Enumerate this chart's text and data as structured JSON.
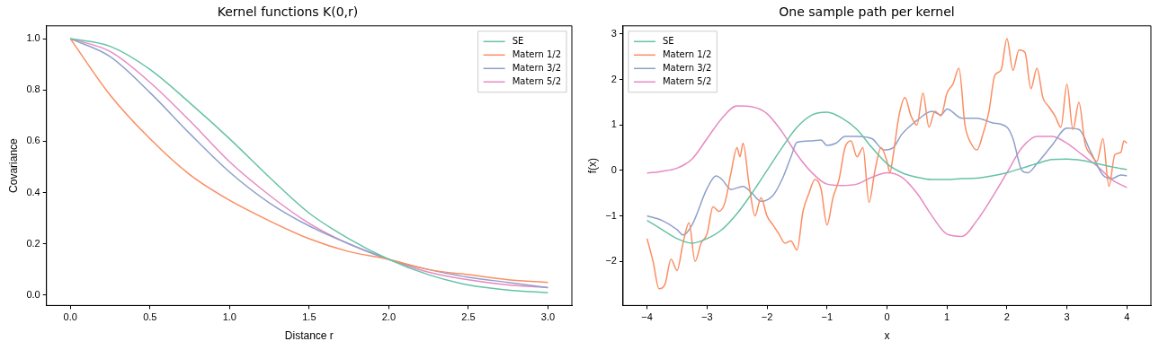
{
  "chart_data": [
    {
      "type": "line",
      "title": "Kernel functions K(0,r)",
      "xlabel": "Distance r",
      "ylabel": "Covariance",
      "x": [
        0,
        0.25,
        0.5,
        0.75,
        1,
        1.25,
        1.5,
        1.75,
        2,
        2.25,
        2.5,
        2.75,
        3
      ],
      "xlim": [
        -0.15,
        3.15
      ],
      "xticks": [
        {
          "value": 0,
          "label": "0.0"
        },
        {
          "value": 0.5,
          "label": "0.5"
        },
        {
          "value": 1,
          "label": "1.0"
        },
        {
          "value": 1.5,
          "label": "1.5"
        },
        {
          "value": 2,
          "label": "2.0"
        },
        {
          "value": 2.5,
          "label": "2.5"
        },
        {
          "value": 3,
          "label": "3.0"
        }
      ],
      "ylim": [
        -0.04,
        1.05
      ],
      "yticks": [
        {
          "value": 0,
          "label": "0.0"
        },
        {
          "value": 0.2,
          "label": "0.2"
        },
        {
          "value": 0.4,
          "label": "0.4"
        },
        {
          "value": 0.6,
          "label": "0.6"
        },
        {
          "value": 0.8,
          "label": "0.8"
        },
        {
          "value": 1,
          "label": "1.0"
        }
      ],
      "grid": false,
      "legend": "top right",
      "marker": "none",
      "line_style": "solid",
      "series": [
        {
          "name": "SE",
          "color": "#66c2a5",
          "values": [
            1,
            0.97,
            0.88,
            0.75,
            0.61,
            0.46,
            0.32,
            0.22,
            0.14,
            0.08,
            0.04,
            0.02,
            0.01
          ]
        },
        {
          "name": "Matern 1/2",
          "color": "#fc8d62",
          "values": [
            1,
            0.78,
            0.61,
            0.47,
            0.37,
            0.29,
            0.22,
            0.17,
            0.14,
            0.1,
            0.08,
            0.06,
            0.05
          ]
        },
        {
          "name": "Matern 3/2",
          "color": "#8da0cb",
          "values": [
            1,
            0.93,
            0.79,
            0.63,
            0.48,
            0.36,
            0.27,
            0.2,
            0.14,
            0.1,
            0.07,
            0.05,
            0.03
          ]
        },
        {
          "name": "Matern 5/2",
          "color": "#e78ac3",
          "values": [
            1,
            0.95,
            0.83,
            0.68,
            0.52,
            0.39,
            0.28,
            0.2,
            0.14,
            0.09,
            0.06,
            0.04,
            0.03
          ]
        }
      ]
    },
    {
      "type": "line",
      "title": "One sample path per kernel",
      "xlabel": "x",
      "ylabel": "f(x)",
      "xlim": [
        -4.4,
        4.4
      ],
      "xticks": [
        {
          "value": -4,
          "label": "−4"
        },
        {
          "value": -3,
          "label": "−3"
        },
        {
          "value": -2,
          "label": "−2"
        },
        {
          "value": -1,
          "label": "−1"
        },
        0,
        1,
        2,
        3,
        4
      ],
      "ylim": [
        -2.97,
        3.18
      ],
      "yticks": [
        {
          "value": -2,
          "label": "−2"
        },
        {
          "value": -1,
          "label": "−1"
        },
        0,
        1,
        2,
        3
      ],
      "grid": false,
      "legend": "top left",
      "marker": "none",
      "line_style": "solid",
      "series": [
        {
          "name": "SE",
          "color": "#66c2a5",
          "x": [
            -4,
            -3.75,
            -3.5,
            -3.25,
            -3,
            -2.75,
            -2.5,
            -2.25,
            -2,
            -1.75,
            -1.5,
            -1.25,
            -1,
            -0.75,
            -0.5,
            -0.25,
            0,
            0.25,
            0.5,
            0.75,
            1,
            1.25,
            1.5,
            1.75,
            2,
            2.25,
            2.5,
            2.75,
            3,
            3.25,
            3.5,
            3.75,
            4
          ],
          "values": [
            -1.1,
            -1.3,
            -1.5,
            -1.6,
            -1.5,
            -1.3,
            -0.95,
            -0.5,
            0,
            0.5,
            0.95,
            1.22,
            1.28,
            1.15,
            0.9,
            0.5,
            0.15,
            -0.05,
            -0.15,
            -0.2,
            -0.2,
            -0.18,
            -0.17,
            -0.12,
            -0.05,
            0.05,
            0.15,
            0.24,
            0.25,
            0.22,
            0.15,
            0.08,
            0.02
          ]
        },
        {
          "name": "Matern 1/2",
          "color": "#fc8d62",
          "x": [
            -4,
            -3.9,
            -3.8,
            -3.7,
            -3.6,
            -3.5,
            -3.4,
            -3.3,
            -3.2,
            -3.1,
            -3,
            -2.9,
            -2.8,
            -2.7,
            -2.6,
            -2.5,
            -2.45,
            -2.4,
            -2.3,
            -2.2,
            -2.1,
            -2,
            -1.9,
            -1.8,
            -1.7,
            -1.6,
            -1.5,
            -1.4,
            -1.3,
            -1.2,
            -1.1,
            -1,
            -0.9,
            -0.8,
            -0.7,
            -0.6,
            -0.5,
            -0.4,
            -0.3,
            -0.2,
            -0.1,
            0,
            0.05,
            0.1,
            0.2,
            0.3,
            0.4,
            0.5,
            0.6,
            0.7,
            0.8,
            0.9,
            1,
            1.1,
            1.2,
            1.3,
            1.4,
            1.5,
            1.6,
            1.7,
            1.8,
            1.9,
            2,
            2.1,
            2.2,
            2.3,
            2.4,
            2.5,
            2.6,
            2.7,
            2.8,
            2.9,
            3,
            3.1,
            3.2,
            3.3,
            3.4,
            3.5,
            3.6,
            3.7,
            3.8,
            3.9,
            3.95,
            4
          ],
          "values": [
            -1.5,
            -2,
            -2.6,
            -2.5,
            -1.95,
            -2.2,
            -1.6,
            -1.15,
            -2,
            -1.6,
            -1.4,
            -0.8,
            -0.9,
            -0.7,
            -0.05,
            0.5,
            0.3,
            0.6,
            -0.3,
            -1,
            -0.6,
            -1,
            -1.2,
            -1.4,
            -1.6,
            -1.55,
            -1.75,
            -0.9,
            -0.5,
            -0.2,
            -0.4,
            -1.2,
            -0.6,
            -0.2,
            0.5,
            0.65,
            0.3,
            0.5,
            -0.7,
            0,
            0.5,
            0.2,
            -0.05,
            0.3,
            1.2,
            1.6,
            1.2,
            1,
            1.7,
            0.95,
            1.3,
            1.2,
            1.7,
            1.9,
            2.25,
            1,
            0.6,
            0.45,
            0.8,
            1.3,
            2.1,
            2.2,
            2.9,
            2.2,
            2.65,
            2.6,
            1.8,
            2.25,
            1.6,
            1.4,
            1.2,
            0.95,
            1.9,
            0.9,
            1.5,
            0.6,
            0.35,
            0.2,
            0.7,
            -0.35,
            0.35,
            0.4,
            0.65,
            0.6
          ]
        },
        {
          "name": "Matern 3/2",
          "color": "#8da0cb",
          "x": [
            -4,
            -3.75,
            -3.5,
            -3.4,
            -3.25,
            -3,
            -2.85,
            -2.75,
            -2.6,
            -2.4,
            -2.25,
            -2.1,
            -1.9,
            -1.75,
            -1.6,
            -1.5,
            -1.25,
            -1.1,
            -1,
            -0.85,
            -0.7,
            -0.5,
            -0.25,
            -0.05,
            0.1,
            0.25,
            0.5,
            0.75,
            0.9,
            1,
            1.25,
            1.5,
            1.75,
            2,
            2.1,
            2.25,
            2.35,
            2.5,
            2.75,
            3,
            3.2,
            3.4,
            3.6,
            3.75,
            3.9,
            4
          ],
          "values": [
            -1,
            -1.1,
            -1.3,
            -1.42,
            -1.2,
            -0.4,
            -0.12,
            -0.2,
            -0.42,
            -0.35,
            -0.5,
            -0.68,
            -0.55,
            -0.2,
            0.3,
            0.62,
            0.65,
            0.67,
            0.55,
            0.6,
            0.75,
            0.75,
            0.7,
            0.45,
            0.5,
            0.8,
            1.1,
            1.3,
            1.22,
            1.35,
            1.15,
            1.15,
            1.05,
            0.95,
            0.7,
            0,
            -0.05,
            0.15,
            0.55,
            0.93,
            0.9,
            0.4,
            -0.1,
            -0.18,
            -0.1,
            -0.12
          ]
        },
        {
          "name": "Matern 5/2",
          "color": "#e78ac3",
          "x": [
            -4,
            -3.75,
            -3.5,
            -3.25,
            -3,
            -2.75,
            -2.5,
            -2.25,
            -2,
            -1.75,
            -1.5,
            -1.25,
            -1,
            -0.75,
            -0.5,
            -0.25,
            0,
            0.25,
            0.5,
            0.75,
            1,
            1.25,
            1.5,
            1.75,
            2,
            2.25,
            2.5,
            2.75,
            3,
            3.25,
            3.5,
            3.75,
            4
          ],
          "values": [
            -0.06,
            -0.02,
            0.05,
            0.25,
            0.7,
            1.15,
            1.42,
            1.4,
            1.25,
            0.85,
            0.35,
            -0.05,
            -0.3,
            -0.33,
            -0.3,
            -0.15,
            -0.05,
            -0.15,
            -0.5,
            -1,
            -1.4,
            -1.45,
            -1.1,
            -0.6,
            -0.05,
            0.5,
            0.75,
            0.75,
            0.6,
            0.35,
            0.1,
            -0.2,
            -0.38
          ]
        }
      ]
    }
  ]
}
